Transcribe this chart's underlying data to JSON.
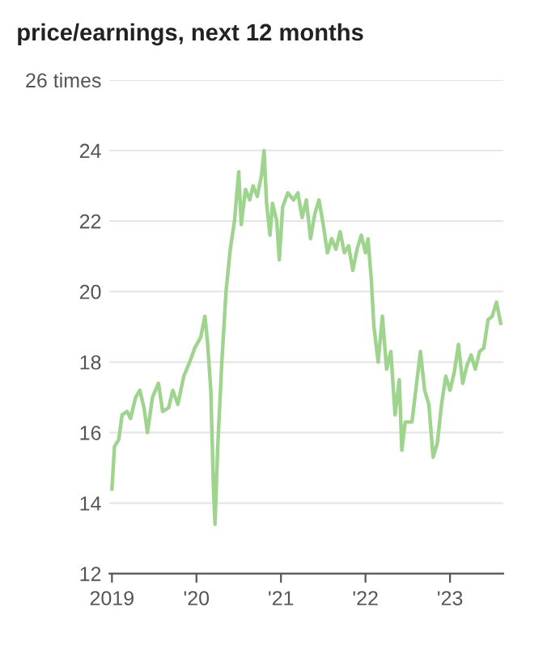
{
  "chart_data": {
    "type": "line",
    "title": "price/earnings, next 12 months",
    "x": [
      2019.0,
      2019.03,
      2019.08,
      2019.12,
      2019.18,
      2019.22,
      2019.28,
      2019.33,
      2019.38,
      2019.42,
      2019.48,
      2019.55,
      2019.6,
      2019.67,
      2019.72,
      2019.78,
      2019.85,
      2019.92,
      2019.98,
      2020.05,
      2020.1,
      2020.13,
      2020.17,
      2020.2,
      2020.22,
      2020.25,
      2020.3,
      2020.35,
      2020.4,
      2020.45,
      2020.5,
      2020.53,
      2020.58,
      2020.63,
      2020.67,
      2020.72,
      2020.77,
      2020.8,
      2020.83,
      2020.87,
      2020.9,
      2020.95,
      2020.98,
      2021.02,
      2021.08,
      2021.15,
      2021.2,
      2021.25,
      2021.3,
      2021.35,
      2021.4,
      2021.45,
      2021.5,
      2021.55,
      2021.6,
      2021.65,
      2021.7,
      2021.75,
      2021.8,
      2021.85,
      2021.9,
      2021.95,
      2022.0,
      2022.03,
      2022.07,
      2022.1,
      2022.15,
      2022.2,
      2022.25,
      2022.3,
      2022.35,
      2022.4,
      2022.43,
      2022.47,
      2022.55,
      2022.6,
      2022.65,
      2022.7,
      2022.75,
      2022.8,
      2022.85,
      2022.9,
      2022.95,
      2023.0,
      2023.05,
      2023.1,
      2023.15,
      2023.2,
      2023.25,
      2023.3,
      2023.35,
      2023.4,
      2023.45,
      2023.5,
      2023.55,
      2023.6
    ],
    "series": [
      {
        "color": "#9fd48f",
        "values": [
          14.4,
          15.6,
          15.8,
          16.5,
          16.6,
          16.4,
          17.0,
          17.2,
          16.7,
          16.0,
          17.0,
          17.4,
          16.6,
          16.7,
          17.2,
          16.8,
          17.6,
          18.0,
          18.4,
          18.7,
          19.3,
          18.6,
          17.2,
          14.5,
          13.4,
          15.5,
          18.0,
          20.0,
          21.2,
          22.0,
          23.4,
          21.9,
          22.9,
          22.6,
          23.0,
          22.7,
          23.3,
          24.0,
          22.5,
          21.6,
          22.5,
          22.0,
          20.9,
          22.4,
          22.8,
          22.6,
          22.8,
          22.1,
          22.6,
          21.5,
          22.2,
          22.6,
          21.9,
          21.1,
          21.5,
          21.2,
          21.7,
          21.1,
          21.3,
          20.6,
          21.2,
          21.6,
          21.1,
          21.5,
          20.3,
          19.0,
          18.0,
          19.3,
          17.8,
          18.3,
          16.5,
          17.5,
          15.5,
          16.3,
          16.3,
          17.3,
          18.3,
          17.2,
          16.8,
          15.3,
          15.7,
          16.8,
          17.6,
          17.2,
          17.7,
          18.5,
          17.4,
          17.9,
          18.2,
          17.8,
          18.3,
          18.4,
          19.2,
          19.3,
          19.7,
          19.1
        ]
      }
    ],
    "xlim": [
      2018.97,
      2023.63
    ],
    "xticks": [
      {
        "value": 2019,
        "label": "2019"
      },
      {
        "value": 2020,
        "label": "'20"
      },
      {
        "value": 2021,
        "label": "'21"
      },
      {
        "value": 2022,
        "label": "'22"
      },
      {
        "value": 2023,
        "label": "'23"
      }
    ],
    "ylim": [
      12,
      26
    ],
    "yticks": [
      12,
      14,
      16,
      18,
      20,
      22,
      24,
      {
        "value": 26,
        "label": "26 times"
      }
    ],
    "grid": "y"
  }
}
